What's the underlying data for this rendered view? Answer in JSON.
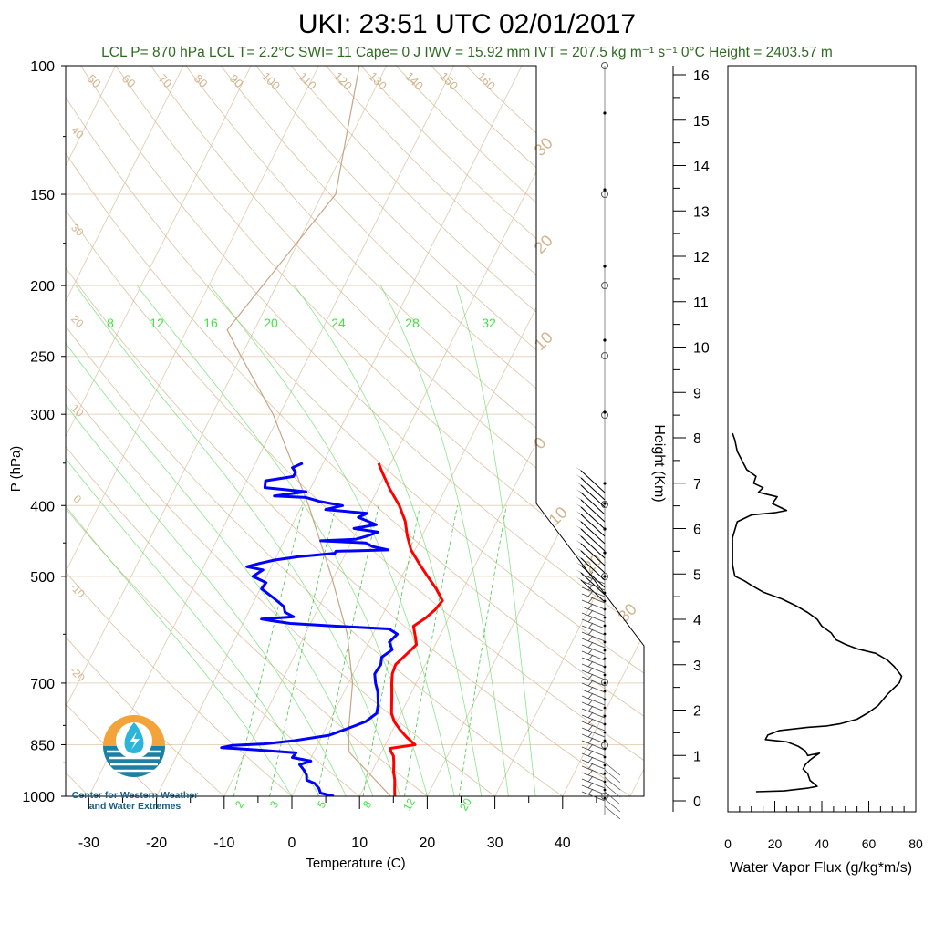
{
  "title": "UKI: 23:51 UTC 02/01/2017",
  "stats": "LCL P= 870 hPa  LCL T= 2.2°C  SWI= 11  Cape= 0 J  IWV = 15.92 mm  IVT = 207.5 kg m⁻¹ s⁻¹  0°C Height = 2403.57 m",
  "logo": {
    "line1": "Center for Western Weather",
    "line2": "and Water Extremes",
    "colors": {
      "sun": "#f2a33a",
      "water": "#1d7fa3",
      "drop": "#2bb5d9"
    }
  },
  "colors": {
    "temperature": "#ff0000",
    "dewpoint": "#0000ff",
    "parcel": "#c8a586",
    "dry_adiabat": "#d2b48c",
    "moist_adiabat": "#58dc58",
    "mixing_ratio": "#46c846",
    "isobar_grid": "#e8d5c0",
    "stats_text": "#2e6b1f"
  },
  "chart_data": [
    {
      "type": "line",
      "subtype": "skew-t log-p",
      "xlabel": "Temperature (C)",
      "ylabel": "P (hPa)",
      "xticks": [
        -30,
        -20,
        -10,
        0,
        10,
        20,
        30,
        40
      ],
      "yticks": [
        100,
        150,
        200,
        250,
        300,
        400,
        500,
        700,
        850,
        1000
      ],
      "ylim": [
        1000,
        100
      ],
      "log_scale_y": true,
      "isotherm_labels": [
        -40,
        -30,
        -20,
        -10,
        0,
        10,
        20,
        30
      ],
      "dry_adiabat_labels": [
        50,
        60,
        70,
        80,
        90,
        100,
        110,
        120,
        130,
        140,
        150,
        160,
        40,
        30,
        20,
        10,
        0,
        -10,
        -20
      ],
      "moist_adiabat_labels": [
        8,
        12,
        16,
        20,
        24,
        28,
        32
      ],
      "mixing_ratio_labels": [
        2,
        3,
        5,
        8,
        12,
        20
      ],
      "height_axis": {
        "label": "Height (Km)",
        "ticks": [
          0,
          1,
          2,
          3,
          4,
          5,
          6,
          7,
          8,
          9,
          10,
          11,
          12,
          13,
          14,
          15,
          16
        ]
      },
      "series": [
        {
          "key": "temperature",
          "points": [
            [
              1000,
              15.2
            ],
            [
              975,
              14.6
            ],
            [
              950,
              14.0
            ],
            [
              925,
              13.2
            ],
            [
              900,
              12.6
            ],
            [
              880,
              12.0
            ],
            [
              870,
              11.4
            ],
            [
              860,
              11.0
            ],
            [
              850,
              14.4
            ],
            [
              830,
              12.6
            ],
            [
              810,
              11.0
            ],
            [
              790,
              9.6
            ],
            [
              770,
              8.6
            ],
            [
              750,
              8.0
            ],
            [
              730,
              7.4
            ],
            [
              700,
              6.4
            ],
            [
              680,
              5.8
            ],
            [
              660,
              5.6
            ],
            [
              640,
              6.4
            ],
            [
              620,
              7.2
            ],
            [
              600,
              6.2
            ],
            [
              585,
              5.4
            ],
            [
              570,
              6.6
            ],
            [
              555,
              7.4
            ],
            [
              540,
              7.8
            ],
            [
              520,
              6.0
            ],
            [
              500,
              3.8
            ],
            [
              480,
              1.6
            ],
            [
              460,
              -0.6
            ],
            [
              440,
              -2.2
            ],
            [
              420,
              -3.6
            ],
            [
              400,
              -5.6
            ],
            [
              380,
              -8.2
            ],
            [
              360,
              -10.6
            ],
            [
              350,
              -11.8
            ]
          ]
        },
        {
          "key": "dewpoint",
          "points": [
            [
              1000,
              6.2
            ],
            [
              990,
              4.0
            ],
            [
              975,
              3.4
            ],
            [
              960,
              2.4
            ],
            [
              950,
              1.0
            ],
            [
              935,
              0.6
            ],
            [
              920,
              -0.2
            ],
            [
              905,
              -1.2
            ],
            [
              895,
              0.2
            ],
            [
              885,
              -2.8
            ],
            [
              872,
              -2.6
            ],
            [
              865,
              -8.0
            ],
            [
              858,
              -14.0
            ],
            [
              852,
              -12.6
            ],
            [
              848,
              -8.0
            ],
            [
              840,
              -4.0
            ],
            [
              825,
              1.0
            ],
            [
              800,
              4.2
            ],
            [
              790,
              5.4
            ],
            [
              770,
              6.4
            ],
            [
              750,
              6.0
            ],
            [
              720,
              5.0
            ],
            [
              700,
              4.0
            ],
            [
              680,
              3.2
            ],
            [
              660,
              3.4
            ],
            [
              645,
              3.0
            ],
            [
              630,
              4.0
            ],
            [
              615,
              3.0
            ],
            [
              600,
              3.6
            ],
            [
              590,
              2.0
            ],
            [
              585,
              -6.0
            ],
            [
              580,
              -13.0
            ],
            [
              575,
              -16.0
            ],
            [
              572,
              -17.6
            ],
            [
              568,
              -13.0
            ],
            [
              560,
              -14.6
            ],
            [
              550,
              -15.2
            ],
            [
              535,
              -17.4
            ],
            [
              520,
              -19.8
            ],
            [
              510,
              -19.6
            ],
            [
              500,
              -22.0
            ],
            [
              490,
              -21.0
            ],
            [
              485,
              -23.6
            ],
            [
              480,
              -22.0
            ],
            [
              475,
              -20.0
            ],
            [
              470,
              -16.8
            ],
            [
              465,
              -11.6
            ],
            [
              462,
              -11.6
            ],
            [
              460,
              -4.0
            ],
            [
              455,
              -6.6
            ],
            [
              450,
              -7.8
            ],
            [
              447,
              -14.6
            ],
            [
              445,
              -9.6
            ],
            [
              440,
              -8.0
            ],
            [
              435,
              -6.8
            ],
            [
              430,
              -10.6
            ],
            [
              425,
              -7.6
            ],
            [
              415,
              -10.8
            ],
            [
              410,
              -9.8
            ],
            [
              405,
              -16.2
            ],
            [
              400,
              -14.0
            ],
            [
              395,
              -17.6
            ],
            [
              390,
              -20.0
            ],
            [
              388,
              -24.8
            ],
            [
              383,
              -20.4
            ],
            [
              378,
              -26.8
            ],
            [
              370,
              -27.2
            ],
            [
              365,
              -23.4
            ],
            [
              360,
              -23.4
            ],
            [
              355,
              -24.2
            ],
            [
              350,
              -23.0
            ]
          ]
        },
        {
          "key": "parcel",
          "points": [
            [
              1000,
              14.6
            ],
            [
              870,
              5.2
            ],
            [
              850,
              4.6
            ],
            [
              800,
              3.2
            ],
            [
              700,
              0.6
            ],
            [
              600,
              -3.8
            ],
            [
              500,
              -10.4
            ],
            [
              400,
              -19.0
            ],
            [
              300,
              -31.0
            ],
            [
              250,
              -40.0
            ],
            [
              230,
              -44.0
            ],
            [
              150,
              -38.0
            ],
            [
              100,
              -44.0
            ]
          ]
        }
      ]
    },
    {
      "type": "line",
      "xlabel": "Water Vapor Flux (g/kg*m/s)",
      "ylabel": "Height (Km)",
      "xlim": [
        0,
        80
      ],
      "ylim": [
        0,
        16
      ],
      "xticks": [
        0,
        20,
        40,
        60,
        80
      ],
      "yticks": [
        0,
        1,
        2,
        3,
        4,
        5,
        6,
        7,
        8,
        9,
        10,
        11,
        12,
        13,
        14,
        15,
        16
      ],
      "series": [
        {
          "key": "water-vapor-flux",
          "points": [
            [
              12,
              0.2
            ],
            [
              24,
              0.22
            ],
            [
              34,
              0.28
            ],
            [
              38,
              0.32
            ],
            [
              35,
              0.45
            ],
            [
              34,
              0.6
            ],
            [
              32,
              0.7
            ],
            [
              33,
              0.8
            ],
            [
              35,
              0.9
            ],
            [
              37,
              0.98
            ],
            [
              39,
              1.05
            ],
            [
              34,
              1.0
            ],
            [
              33,
              1.1
            ],
            [
              30,
              1.2
            ],
            [
              25,
              1.3
            ],
            [
              16,
              1.35
            ],
            [
              17,
              1.45
            ],
            [
              22,
              1.55
            ],
            [
              34,
              1.62
            ],
            [
              42,
              1.65
            ],
            [
              48,
              1.7
            ],
            [
              55,
              1.8
            ],
            [
              60,
              1.95
            ],
            [
              64,
              2.1
            ],
            [
              68,
              2.35
            ],
            [
              73,
              2.6
            ],
            [
              74,
              2.75
            ],
            [
              71,
              2.95
            ],
            [
              68,
              3.1
            ],
            [
              63,
              3.25
            ],
            [
              55,
              3.35
            ],
            [
              50,
              3.45
            ],
            [
              46,
              3.55
            ],
            [
              44,
              3.7
            ],
            [
              40,
              3.85
            ],
            [
              38,
              4.0
            ],
            [
              34,
              4.15
            ],
            [
              29,
              4.3
            ],
            [
              23,
              4.45
            ],
            [
              15,
              4.6
            ],
            [
              10,
              4.75
            ],
            [
              7,
              4.85
            ],
            [
              3,
              4.95
            ],
            [
              2,
              5.2
            ],
            [
              2,
              5.8
            ],
            [
              4,
              6.15
            ],
            [
              10,
              6.3
            ],
            [
              20,
              6.35
            ],
            [
              25,
              6.4
            ],
            [
              19,
              6.55
            ],
            [
              21,
              6.7
            ],
            [
              17,
              6.75
            ],
            [
              13,
              6.8
            ],
            [
              15,
              6.9
            ],
            [
              11,
              7.0
            ],
            [
              12,
              7.15
            ],
            [
              8,
              7.3
            ],
            [
              6,
              7.5
            ],
            [
              4,
              7.7
            ],
            [
              3,
              7.95
            ],
            [
              2,
              8.1
            ]
          ]
        }
      ]
    }
  ]
}
